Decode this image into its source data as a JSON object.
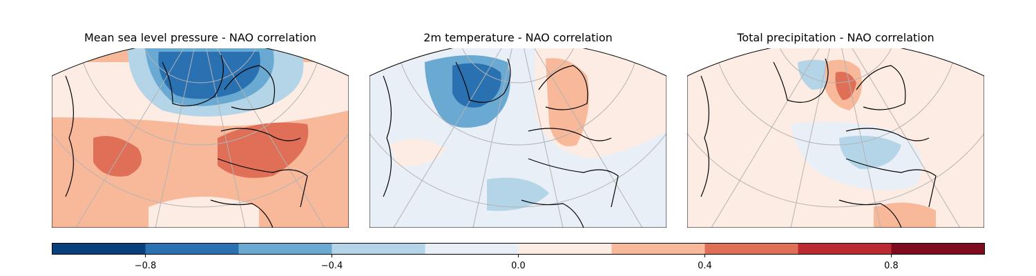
{
  "figure": {
    "panels": [
      {
        "title": "Mean sea level pressure - NAO correlation",
        "variable": "msl"
      },
      {
        "title": "2m temperature - NAO correlation",
        "variable": "t2m"
      },
      {
        "title": "Total precipitation - NAO correlation",
        "variable": "tp"
      }
    ]
  },
  "colorbar": {
    "colormap": "RdBu_r",
    "min": -1.0,
    "max": 1.0,
    "levels": [
      -1.0,
      -0.8,
      -0.6,
      -0.4,
      -0.2,
      0.0,
      0.2,
      0.4,
      0.6,
      0.8,
      1.0
    ],
    "colors": [
      "#0a3f7e",
      "#2a71b2",
      "#6aa9d2",
      "#b4d5e8",
      "#e8eff6",
      "#fdece3",
      "#f8b99a",
      "#df6f57",
      "#bb2a32",
      "#7f0b1f"
    ],
    "ticks": [
      {
        "value": -0.8,
        "label": "−0.8"
      },
      {
        "value": -0.4,
        "label": "−0.4"
      },
      {
        "value": 0.0,
        "label": "0.0"
      },
      {
        "value": 0.4,
        "label": "0.4"
      },
      {
        "value": 0.8,
        "label": "0.8"
      }
    ]
  },
  "map": {
    "projection": "conic over North Atlantic and Europe",
    "gridlines": true,
    "coastlines": true,
    "land_color": "#000000",
    "grid_color": "#b3b3b3"
  }
}
